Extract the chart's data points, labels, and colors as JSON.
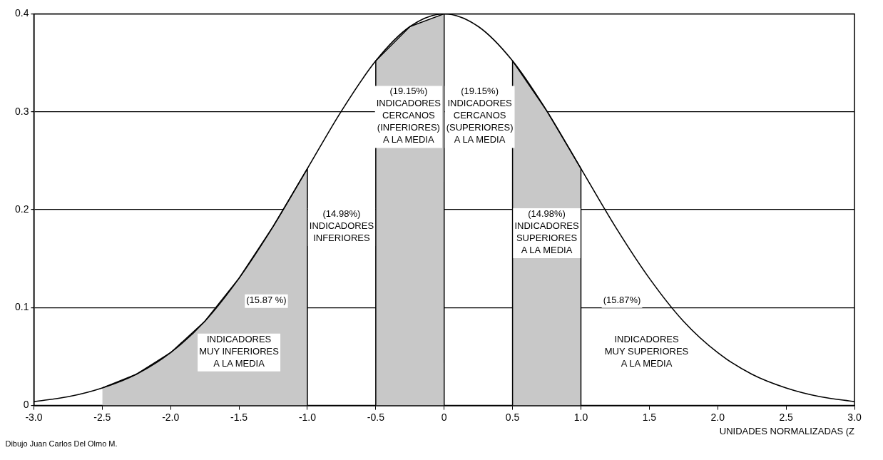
{
  "chart_data": {
    "type": "line",
    "xlabel": "UNIDADES NORMALIZADAS (Z",
    "xlim": [
      -3,
      3
    ],
    "ylim": [
      0,
      0.4
    ],
    "xticks": [
      {
        "value": -3,
        "label": "-3.0"
      },
      {
        "value": -2.5,
        "label": "-2.5"
      },
      {
        "value": -2,
        "label": "-2.0"
      },
      {
        "value": -1.5,
        "label": "-1.5"
      },
      {
        "value": -1,
        "label": "-1.0"
      },
      {
        "value": -0.5,
        "label": "-0.5"
      },
      0,
      0.5,
      {
        "value": 1,
        "label": "1.0"
      },
      1.5,
      {
        "value": 2,
        "label": "2.0"
      },
      2.5,
      {
        "value": 3,
        "label": "3.0"
      }
    ],
    "yticks": [
      0,
      0.1,
      0.2,
      0.3,
      0.4
    ],
    "grid": "y",
    "marker": "none",
    "line_style": "solid",
    "series": [
      {
        "color": "#000000",
        "x": [
          -3,
          -2.75,
          -2.5,
          -2.25,
          -2,
          -1.75,
          -1.5,
          -1.25,
          -1,
          -0.75,
          -0.5,
          -0.25,
          0,
          0.25,
          0.5,
          0.75,
          1,
          1.25,
          1.5,
          1.75,
          2,
          2.25,
          2.5,
          2.75,
          3
        ],
        "values": [
          0.004,
          0.009,
          0.018,
          0.032,
          0.054,
          0.086,
          0.13,
          0.183,
          0.242,
          0.301,
          0.352,
          0.387,
          0.4,
          0.387,
          0.352,
          0.301,
          0.242,
          0.183,
          0.13,
          0.086,
          0.054,
          0.032,
          0.018,
          0.009,
          0.004
        ]
      },
      {
        "type": "area",
        "color": "#c8c8c8",
        "x": [
          -2.5,
          -2.25,
          -2,
          -1.75,
          -1.5,
          -1.25,
          -1,
          -1
        ],
        "values": [
          0.018,
          0.032,
          0.054,
          0.086,
          0.13,
          0.183,
          0.242,
          0
        ]
      },
      {
        "type": "area",
        "color": "#c8c8c8",
        "x": [
          -0.5,
          -0.5,
          -0.25,
          0,
          0
        ],
        "values": [
          0,
          0.352,
          0.387,
          0.4,
          0
        ]
      },
      {
        "type": "area",
        "color": "#c8c8c8",
        "x": [
          0.5,
          0.5,
          0.75,
          1,
          1
        ],
        "values": [
          0,
          0.352,
          0.301,
          0.242,
          0
        ]
      }
    ],
    "annotations": [
      "(19.15%)\nINDICADORES\nCERCANOS\n(INFERIORES)\nA LA MEDIA",
      "(19.15%)\nINDICADORES\nCERCANOS\n(SUPERIORES)\nA LA MEDIA",
      "(14.98%)\nINDICADORES\nINFERIORES",
      "(14.98%)\nINDICADORES\nSUPERIORES\nA LA MEDIA",
      "(15.87 %)",
      "INDICADORES\nMUY INFERIORES\nA LA MEDIA",
      "(15.87%)",
      "INDICADORES\nMUY SUPERIORES\nA LA MEDIA",
      "Dibujo Juan Carlos Del Olmo M."
    ]
  }
}
